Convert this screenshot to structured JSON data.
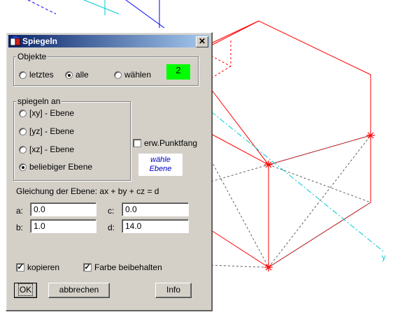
{
  "canvas": {
    "axis_label_y": "y"
  },
  "dialog": {
    "title": "Spiegeln",
    "close_glyph": "✕",
    "objects_group": {
      "label": "Objekte",
      "options": [
        "letztes",
        "alle",
        "wählen"
      ],
      "selected": "alle",
      "count": "2"
    },
    "mirror_group": {
      "label": "spiegeln an",
      "options": [
        "[xy] - Ebene",
        "[yz] - Ebene",
        "[xz] - Ebene",
        "beliebiger Ebene"
      ],
      "selected": "beliebiger Ebene"
    },
    "extended_snap": {
      "label": "erw.Punktfang",
      "checked": false
    },
    "choose_plane": {
      "line1": "wähle",
      "line2": "Ebene"
    },
    "equation_label": "Gleichung der Ebene: ax + by + cz = d",
    "fields": {
      "a": {
        "label": "a:",
        "value": "0.0"
      },
      "b": {
        "label": "b:",
        "value": "1.0"
      },
      "c": {
        "label": "c:",
        "value": "0.0"
      },
      "d": {
        "label": "d:",
        "value": "14.0"
      }
    },
    "copy": {
      "label": "kopieren",
      "checked": true
    },
    "keep_color": {
      "label": "Farbe beibehalten",
      "checked": true
    },
    "ok_label": "OK",
    "cancel_label": "abbrechen",
    "info_label": "Info"
  },
  "colors": {
    "box_lines": "#ff0000",
    "axis": "#00c8d8",
    "accent_green": "#00ff00",
    "title_bar": "#0a246a"
  }
}
